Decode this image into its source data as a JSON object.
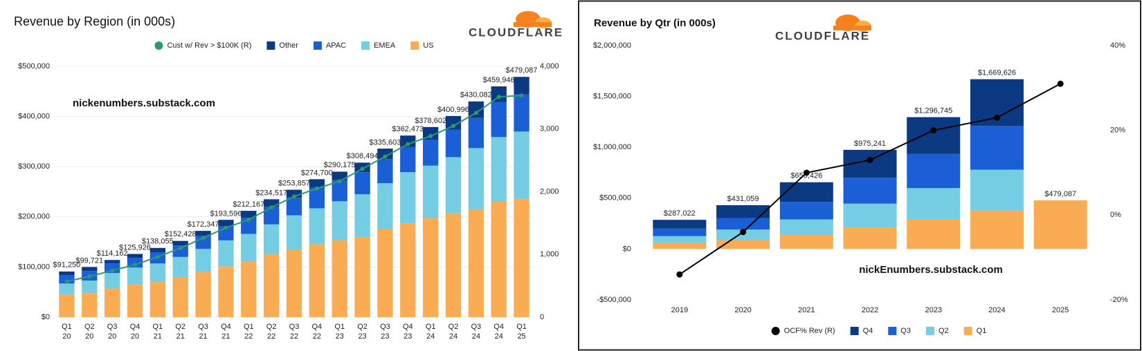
{
  "chart_data": [
    {
      "type": "bar",
      "stacked": true,
      "title": "Revenue by Region (in 000s)",
      "logo": "CLOUDFLARE",
      "annotation": "nickenumbers.substack.com",
      "grid": true,
      "legend": "top",
      "categories": [
        "Q1 20",
        "Q2 20",
        "Q3 20",
        "Q4 20",
        "Q1 21",
        "Q2 21",
        "Q3 21",
        "Q4 21",
        "Q1 22",
        "Q2 22",
        "Q3 22",
        "Q4 22",
        "Q1 23",
        "Q2 23",
        "Q3 23",
        "Q4 23",
        "Q1 24",
        "Q2 24",
        "Q3 24",
        "Q4 24",
        "Q1 25"
      ],
      "series": [
        {
          "name": "Cust w/ Rev > $100K (R)",
          "type": "line",
          "axis": "y2",
          "color": "#2c9a6e",
          "values": [
            568,
            650,
            742,
            835,
            962,
            1100,
            1264,
            1426,
            1553,
            1751,
            1925,
            2052,
            2168,
            2365,
            2562,
            2759,
            2887,
            3049,
            3258,
            3513,
            3536
          ]
        },
        {
          "name": "Other",
          "color": "#0b3a82",
          "values": [
            7000,
            8000,
            7000,
            8000,
            9000,
            9000,
            10000,
            13000,
            14000,
            15000,
            15000,
            17000,
            17000,
            19000,
            21000,
            23000,
            25000,
            27000,
            33000,
            31000,
            35000
          ]
        },
        {
          "name": "APAC",
          "color": "#1a5fd6",
          "values": [
            17000,
            19000,
            19000,
            19000,
            22000,
            23000,
            26000,
            28000,
            32000,
            35000,
            36000,
            41000,
            42000,
            44000,
            48000,
            50000,
            52000,
            55000,
            60000,
            70000,
            74000
          ]
        },
        {
          "name": "EMEA",
          "color": "#74cde3",
          "values": [
            22000,
            25000,
            30000,
            33000,
            37000,
            40000,
            46000,
            52000,
            55000,
            60000,
            68000,
            72000,
            77000,
            85000,
            92000,
            102000,
            105000,
            112000,
            122000,
            129000,
            134000
          ]
        },
        {
          "name": "US",
          "color": "#f9ac54",
          "values": [
            45000,
            48000,
            58000,
            66000,
            70000,
            80000,
            90000,
            101000,
            111000,
            125000,
            135000,
            145000,
            154000,
            160000,
            175000,
            187000,
            197000,
            207000,
            215000,
            230000,
            236000
          ]
        }
      ],
      "totals": [
        91250,
        99721,
        114162,
        125926,
        138055,
        152428,
        172347,
        193596,
        212167,
        234517,
        253857,
        274700,
        290175,
        308494,
        335603,
        362473,
        378602,
        400996,
        430082,
        459946,
        479087
      ],
      "total_labels": [
        "$91,250",
        "$99,721",
        "$114,162",
        "$125,926",
        "$138,055",
        "$152,428",
        "$172,347",
        "$193,596",
        "$212,167",
        "$234,517",
        "$253,857",
        "$274,700",
        "$290,175",
        "$308,494",
        "$335,603",
        "$362,473",
        "$378,602",
        "$400,996",
        "$430,082",
        "$459,946",
        "$479,087"
      ],
      "ylim": [
        0,
        500000
      ],
      "yticks": [
        {
          "value": 0,
          "label": "$0"
        },
        {
          "value": 100000,
          "label": "$100,000"
        },
        {
          "value": 200000,
          "label": "$200,000"
        },
        {
          "value": 300000,
          "label": "$300,000"
        },
        {
          "value": 400000,
          "label": "$400,000"
        },
        {
          "value": 500000,
          "label": "$500,000"
        }
      ],
      "y2lim": [
        0,
        4000
      ],
      "y2ticks": [
        0,
        {
          "value": 1000,
          "label": "1,000"
        },
        {
          "value": 2000,
          "label": "2,000"
        },
        {
          "value": 3000,
          "label": "3,000"
        },
        {
          "value": 4000,
          "label": "4,000"
        }
      ]
    },
    {
      "type": "bar",
      "stacked": true,
      "title": "Revenue by Qtr (in 000s)",
      "logo": "CLOUDFLARE",
      "annotation": "nickEnumbers.substack.com",
      "grid": false,
      "legend": "bottom",
      "categories": [
        "2019",
        "2020",
        "2021",
        "2022",
        "2023",
        "2024",
        "2025"
      ],
      "series": [
        {
          "name": "OCF% Rev (R)",
          "type": "line",
          "axis": "y2",
          "color": "#000000",
          "values": [
            -14,
            -4,
            10,
            13,
            20,
            23,
            31
          ]
        },
        {
          "name": "Q4",
          "color": "#0b3a82",
          "values": [
            86321,
            125926,
            193596,
            274700,
            362473,
            459946,
            null
          ]
        },
        {
          "name": "Q3",
          "color": "#1a5fd6",
          "values": [
            74200,
            114162,
            172347,
            253857,
            335603,
            430082,
            null
          ]
        },
        {
          "name": "Q2",
          "color": "#74cde3",
          "values": [
            67000,
            99721,
            152428,
            234517,
            308494,
            400996,
            null
          ]
        },
        {
          "name": "Q1",
          "color": "#f9ac54",
          "values": [
            59501,
            91250,
            138055,
            212167,
            290175,
            378602,
            479087
          ]
        }
      ],
      "totals": [
        287022,
        431059,
        656426,
        975241,
        1296745,
        1669626,
        479087
      ],
      "total_labels": [
        "$287,022",
        "$431,059",
        "$656,426",
        "$975,241",
        "$1,296,745",
        "$1,669,626",
        "$479,087"
      ],
      "ylim": [
        -500000,
        2000000
      ],
      "yticks": [
        {
          "value": -500000,
          "label": "-$500,000"
        },
        {
          "value": 0,
          "label": "$0"
        },
        {
          "value": 500000,
          "label": "$500,000"
        },
        {
          "value": 1000000,
          "label": "$1,000,000"
        },
        {
          "value": 1500000,
          "label": "$1,500,000"
        },
        {
          "value": 2000000,
          "label": "$2,000,000"
        }
      ],
      "y2lim": [
        -20,
        40
      ],
      "y2ticks": [
        {
          "value": -20,
          "label": "-20%"
        },
        {
          "value": 0,
          "label": "0%"
        },
        {
          "value": 20,
          "label": "20%"
        },
        {
          "value": 40,
          "label": "40%"
        }
      ]
    }
  ]
}
